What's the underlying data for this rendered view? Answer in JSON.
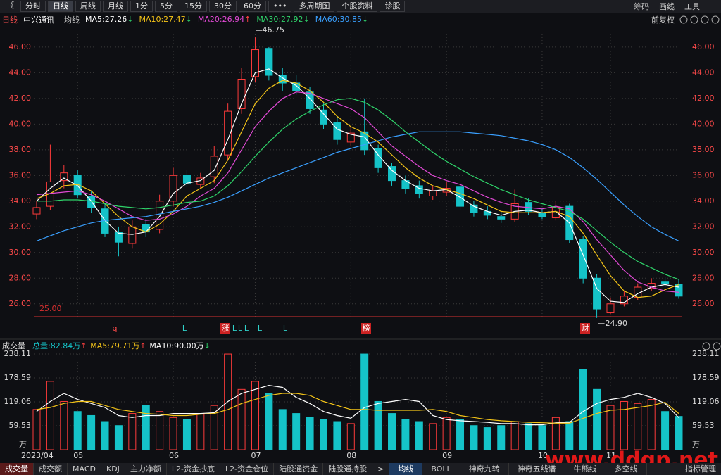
{
  "toolbar": {
    "back": "《",
    "left": [
      "分时",
      "日线",
      "周线",
      "月线",
      "1分",
      "5分",
      "15分",
      "30分",
      "60分",
      "•••",
      "多周期图",
      "个股资料",
      "诊股"
    ],
    "active": 1,
    "right": [
      "筹码",
      "画线",
      "工具"
    ]
  },
  "header": {
    "period": "日线",
    "stock": "中兴通讯",
    "ma_label": "均线",
    "ma": [
      {
        "label": "MA5:27.26",
        "arrow": "↓",
        "color": "#ffffff"
      },
      {
        "label": "MA10:27.47",
        "arrow": "↓",
        "color": "#f5c518"
      },
      {
        "label": "MA20:26.94",
        "arrow": "↑",
        "color": "#e24ad6"
      },
      {
        "label": "MA30:27.92",
        "arrow": "↓",
        "color": "#2fd36a"
      },
      {
        "label": "MA60:30.85",
        "arrow": "↓",
        "color": "#3aa0ff"
      }
    ],
    "adjust": "前复权"
  },
  "chart_data": [
    {
      "type": "candlestick",
      "categories": [
        "2023/04",
        null,
        null,
        "05",
        null,
        null,
        null,
        null,
        null,
        null,
        "06",
        null,
        null,
        null,
        null,
        null,
        "07",
        null,
        null,
        null,
        null,
        null,
        null,
        "08",
        null,
        null,
        null,
        null,
        null,
        null,
        "09",
        null,
        null,
        null,
        null,
        null,
        null,
        "10",
        null,
        null,
        null,
        null,
        "11",
        null,
        null,
        null,
        null,
        null
      ],
      "open": [
        33.0,
        33.6,
        35.6,
        36.0,
        34.4,
        33.4,
        31.6,
        30.7,
        32.2,
        31.8,
        34.0,
        36.0,
        35.3,
        35.9,
        37.6,
        41.2,
        43.7,
        45.9,
        43.8,
        43.2,
        42.5,
        41.1,
        40.1,
        38.6,
        39.4,
        38.1,
        36.7,
        35.6,
        35.2,
        34.4,
        34.7,
        35.1,
        33.7,
        33.2,
        32.8,
        32.6,
        33.9,
        33.1,
        32.7,
        33.6,
        31.0,
        28.0,
        25.3,
        26.0,
        26.5,
        27.2,
        27.7,
        27.5
      ],
      "high": [
        34.0,
        38.4,
        36.8,
        36.4,
        34.8,
        33.8,
        32.0,
        32.5,
        32.6,
        34.5,
        36.6,
        36.4,
        36.2,
        38.3,
        41.6,
        44.4,
        46.75,
        46.0,
        44.4,
        43.8,
        42.9,
        41.6,
        40.6,
        39.8,
        42.0,
        38.4,
        37.0,
        36.0,
        35.6,
        35.2,
        35.5,
        35.4,
        34.0,
        33.6,
        33.2,
        34.9,
        34.2,
        33.5,
        34.0,
        33.8,
        31.3,
        28.3,
        26.5,
        27.0,
        27.6,
        28.0,
        28.1,
        27.9
      ],
      "low": [
        32.6,
        33.3,
        35.0,
        34.2,
        33.1,
        31.2,
        29.7,
        30.3,
        31.2,
        31.5,
        33.6,
        35.1,
        35.0,
        35.4,
        37.2,
        40.8,
        43.3,
        43.4,
        42.6,
        42.3,
        40.8,
        39.6,
        38.4,
        38.3,
        37.6,
        36.2,
        35.2,
        34.6,
        34.2,
        34.1,
        34.4,
        33.3,
        32.8,
        32.6,
        32.3,
        32.4,
        32.9,
        32.6,
        32.5,
        30.7,
        27.6,
        24.9,
        25.2,
        25.8,
        26.3,
        27.0,
        27.3,
        26.4
      ],
      "close": [
        33.5,
        35.5,
        36.2,
        34.5,
        33.5,
        31.5,
        30.8,
        32.0,
        31.6,
        34.0,
        36.0,
        35.4,
        35.8,
        37.5,
        41.0,
        43.5,
        45.8,
        43.8,
        43.2,
        42.6,
        41.2,
        40.0,
        38.8,
        39.3,
        38.0,
        36.6,
        35.6,
        35.0,
        34.6,
        34.8,
        35.0,
        33.6,
        33.1,
        32.9,
        32.6,
        33.8,
        33.2,
        32.8,
        33.5,
        31.0,
        28.0,
        25.6,
        26.0,
        26.6,
        27.3,
        27.6,
        27.6,
        26.6
      ],
      "up_color": "#ff3b3b",
      "down_color": "#15c3c8",
      "ylim": [
        25,
        47.2
      ],
      "yticks": [
        {
          "value": 26,
          "label": "26.00"
        },
        {
          "value": 28,
          "label": "28.00"
        },
        {
          "value": 30,
          "label": "30.00"
        },
        {
          "value": 32,
          "label": "32.00"
        },
        {
          "value": 34,
          "label": "34.00"
        },
        {
          "value": 36,
          "label": "36.00"
        },
        {
          "value": 38,
          "label": "38.00"
        },
        {
          "value": 40,
          "label": "40.00"
        },
        {
          "value": 42,
          "label": "42.00"
        },
        {
          "value": 44,
          "label": "44.00"
        },
        {
          "value": 46,
          "label": "46.00"
        }
      ],
      "lines": [
        {
          "name": "MA5",
          "color": "#ffffff",
          "values": [
            34.0,
            35.0,
            35.8,
            35.2,
            34.0,
            32.5,
            31.5,
            31.4,
            31.6,
            32.8,
            34.6,
            35.4,
            35.6,
            36.4,
            38.8,
            41.6,
            44.0,
            44.3,
            43.6,
            43.0,
            42.0,
            40.8,
            39.6,
            39.2,
            39.0,
            37.6,
            36.4,
            35.6,
            35.0,
            34.8,
            34.9,
            34.3,
            33.6,
            33.2,
            32.9,
            33.2,
            33.3,
            33.1,
            33.2,
            32.3,
            29.8,
            27.2,
            26.2,
            26.1,
            26.8,
            27.3,
            27.5,
            27.3
          ]
        },
        {
          "name": "MA10",
          "color": "#f5c518",
          "values": [
            34.2,
            34.6,
            35.2,
            35.3,
            34.8,
            33.8,
            32.8,
            32.0,
            31.6,
            32.2,
            33.2,
            34.4,
            35.0,
            35.6,
            37.2,
            39.4,
            41.6,
            42.8,
            43.4,
            43.2,
            42.6,
            41.7,
            40.6,
            39.8,
            39.3,
            38.6,
            37.6,
            36.6,
            35.8,
            35.2,
            34.9,
            34.6,
            34.2,
            33.7,
            33.2,
            33.1,
            33.1,
            33.1,
            33.2,
            32.8,
            31.5,
            29.8,
            28.2,
            27.0,
            26.5,
            26.6,
            27.1,
            27.5
          ]
        },
        {
          "name": "MA20",
          "color": "#e24ad6",
          "values": [
            34.5,
            34.6,
            34.7,
            34.8,
            34.5,
            34.0,
            33.4,
            32.8,
            32.5,
            32.6,
            33.0,
            33.6,
            34.4,
            35.0,
            36.2,
            38.0,
            39.8,
            41.0,
            42.0,
            42.5,
            42.4,
            42.0,
            41.6,
            41.2,
            40.5,
            39.4,
            38.3,
            37.5,
            36.7,
            36.0,
            35.6,
            35.3,
            34.8,
            34.3,
            33.9,
            33.6,
            33.5,
            33.4,
            33.6,
            33.4,
            32.4,
            31.0,
            29.8,
            28.6,
            27.7,
            27.3,
            27.0,
            26.9
          ]
        },
        {
          "name": "MA30",
          "color": "#2fd36a",
          "values": [
            34.0,
            34.0,
            34.1,
            34.1,
            34.0,
            33.8,
            33.6,
            33.5,
            33.4,
            33.5,
            33.7,
            33.9,
            34.0,
            34.4,
            35.2,
            36.3,
            37.5,
            38.6,
            39.6,
            40.4,
            41.0,
            41.5,
            41.9,
            42.0,
            41.7,
            41.1,
            40.3,
            39.4,
            38.6,
            37.8,
            37.1,
            36.5,
            35.9,
            35.4,
            34.9,
            34.5,
            34.1,
            33.8,
            33.5,
            33.2,
            32.6,
            31.7,
            30.8,
            30.0,
            29.3,
            28.8,
            28.3,
            27.9
          ]
        },
        {
          "name": "MA60",
          "color": "#3aa0ff",
          "values": [
            30.9,
            31.3,
            31.7,
            32.0,
            32.3,
            32.5,
            32.6,
            32.7,
            32.8,
            33.0,
            33.2,
            33.4,
            33.6,
            33.9,
            34.3,
            34.8,
            35.3,
            35.8,
            36.2,
            36.6,
            37.0,
            37.4,
            37.8,
            38.1,
            38.4,
            38.7,
            39.0,
            39.2,
            39.4,
            39.4,
            39.4,
            39.4,
            39.3,
            39.2,
            39.1,
            38.9,
            38.7,
            38.4,
            38.0,
            37.4,
            36.6,
            35.7,
            34.7,
            33.7,
            32.8,
            32.0,
            31.4,
            30.9
          ]
        }
      ],
      "max_label": "46.75",
      "min_label": "24.90",
      "reference_line": {
        "value": 25,
        "label": "25.00",
        "color": "#d83030"
      },
      "events": [
        "q",
        "L",
        "涨",
        "L",
        "L",
        "L",
        "L",
        "L",
        "榜",
        "财"
      ]
    },
    {
      "type": "volume",
      "title": "成交量",
      "header": [
        {
          "label": "总量:82.84万",
          "arrow": "↑",
          "color": "#15c3c8"
        },
        {
          "label": "MA5:79.71万",
          "arrow": "↑",
          "color": "#f5c518"
        },
        {
          "label": "MA10:90.00万",
          "arrow": "↓",
          "color": "#ffffff"
        }
      ],
      "values": [
        100,
        170,
        120,
        95,
        85,
        70,
        60,
        90,
        110,
        95,
        80,
        75,
        90,
        110,
        238,
        150,
        170,
        140,
        100,
        90,
        80,
        75,
        70,
        65,
        238,
        120,
        90,
        75,
        70,
        65,
        80,
        75,
        60,
        55,
        60,
        70,
        65,
        60,
        80,
        70,
        200,
        150,
        110,
        120,
        115,
        125,
        95,
        82.84
      ],
      "lines": [
        {
          "name": "MA5",
          "color": "#ffffff",
          "values": [
            95,
            120,
            140,
            125,
            115,
            105,
            85,
            80,
            85,
            85,
            90,
            90,
            90,
            92,
            120,
            140,
            150,
            160,
            155,
            130,
            115,
            95,
            85,
            78,
            105,
            115,
            120,
            125,
            120,
            85,
            75,
            72,
            70,
            68,
            65,
            65,
            62,
            62,
            67,
            68,
            95,
            115,
            125,
            130,
            140,
            130,
            115,
            79.71
          ]
        },
        {
          "name": "MA10",
          "color": "#f5c518",
          "values": [
            100,
            105,
            115,
            120,
            120,
            110,
            100,
            95,
            90,
            88,
            85,
            85,
            88,
            90,
            100,
            115,
            125,
            135,
            140,
            140,
            135,
            120,
            110,
            100,
            100,
            98,
            98,
            98,
            98,
            100,
            95,
            85,
            80,
            75,
            72,
            70,
            68,
            67,
            66,
            66,
            78,
            90,
            98,
            100,
            105,
            110,
            118,
            90.0
          ]
        }
      ],
      "ylim": [
        0,
        238.11
      ],
      "yticks": [
        59.53,
        119.06,
        178.59,
        238.11
      ],
      "unit": "万"
    }
  ],
  "tabs": {
    "left": [
      "成交量",
      "成交额",
      "MACD",
      "KDJ",
      "主力净额",
      "L2-资金抄底",
      "L2-资金仓位",
      "陆股通资金",
      "陆股通持股"
    ],
    "more": ">",
    "right": [
      "均线",
      "BOLL",
      "神奇九转",
      "神奇五线谱",
      "牛熊线",
      "多空线"
    ],
    "manage": "指标管理"
  },
  "watermark": "www.ddgp.net"
}
